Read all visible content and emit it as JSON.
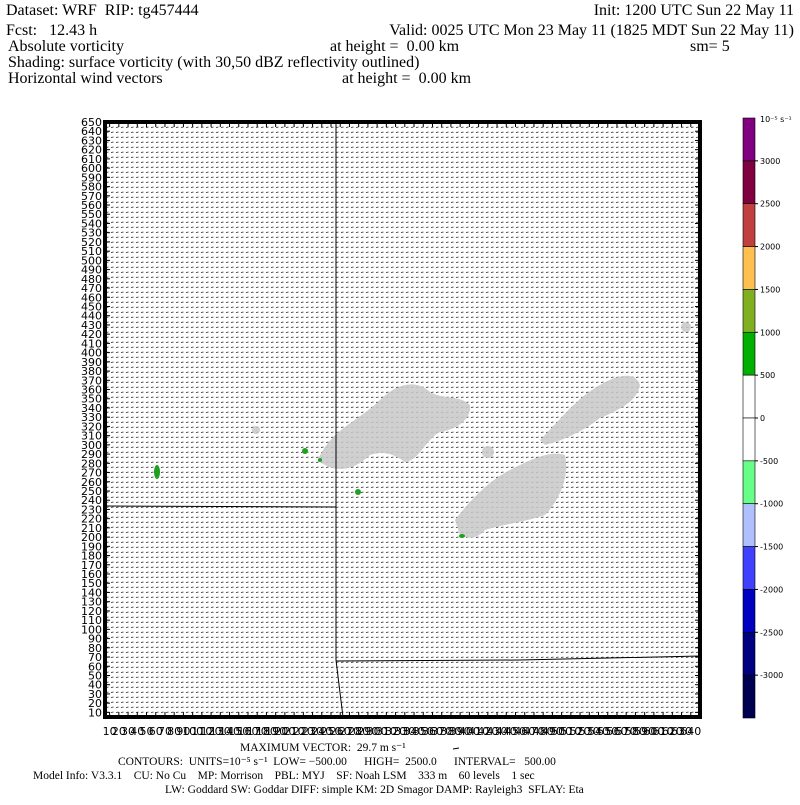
{
  "header": {
    "dataset": "Dataset: WRF  RIP: tg457444",
    "init": "Init: 1200 UTC Sun 22 May 11",
    "fcst": "Fcst:   12.43 h",
    "valid": "Valid: 0025 UTC Mon 23 May 11 (1825 MDT Sun 22 May 11)",
    "field": "Absolute vorticity",
    "field_height": "at height =  0.00 km",
    "smoothing": "sm= 5",
    "shading": "Shading: surface vorticity (with 30,50 dBZ reflectivity outlined)",
    "vectors": "Horizontal wind vectors",
    "vectors_height": "at height =  0.00 km"
  },
  "plot": {
    "xlim": [
      5,
      650
    ],
    "ylim": [
      5,
      650
    ],
    "xticks": [
      10,
      20,
      30,
      40,
      50,
      60,
      70,
      80,
      90,
      100,
      110,
      120,
      130,
      140,
      150,
      160,
      170,
      180,
      190,
      200,
      210,
      220,
      230,
      240,
      250,
      260,
      270,
      280,
      290,
      300,
      310,
      320,
      330,
      340,
      350,
      360,
      370,
      380,
      390,
      400,
      410,
      420,
      430,
      440,
      450,
      460,
      470,
      480,
      490,
      500,
      510,
      520,
      530,
      540,
      550,
      560,
      570,
      580,
      590,
      600,
      610,
      620,
      630,
      640
    ],
    "yticks": [
      10,
      20,
      30,
      40,
      50,
      60,
      70,
      80,
      90,
      100,
      110,
      120,
      130,
      140,
      150,
      160,
      170,
      180,
      190,
      200,
      210,
      220,
      230,
      240,
      250,
      260,
      270,
      280,
      290,
      300,
      310,
      320,
      330,
      340,
      350,
      360,
      370,
      380,
      390,
      400,
      410,
      420,
      430,
      440,
      450,
      460,
      470,
      480,
      490,
      500,
      510,
      520,
      530,
      540,
      550,
      560,
      570,
      580,
      590,
      600,
      610,
      620,
      630,
      640,
      650
    ]
  },
  "colorbar": {
    "unit_label": "10⁻⁵ s⁻¹",
    "lim": [
      -3500,
      3500
    ],
    "ticks": [
      3000,
      2500,
      2000,
      1500,
      1000,
      500,
      0,
      -500,
      -1000,
      -1500,
      -2000,
      -2500,
      -3000
    ],
    "colors": [
      "#800080",
      "#800040",
      "#c04040",
      "#ffc050",
      "#80b020",
      "#00b000",
      "#ffffff",
      "#ffffff",
      "#66ff88",
      "#b0c0ff",
      "#4040ff",
      "#0000c0",
      "#000080",
      "#000050"
    ]
  },
  "footer": {
    "max_vector": "MAXIMUM VECTOR:  29.7 m s⁻¹",
    "contours": "CONTOURS:  UNITS=10⁻⁵ s⁻¹  LOW= −500.00      HIGH=  2500.0      INTERVAL=   500.00",
    "model_info": "Model Info: V3.3.1    CU: No Cu    MP: Morrison    PBL: MYJ    SF: Noah LSM    333 m    60 levels    1 sec",
    "physics": "LW: Goddard SW: Goddar DIFF: simple KM: 2D Smagor DAMP: Rayleigh3  SFLAY: Eta"
  }
}
